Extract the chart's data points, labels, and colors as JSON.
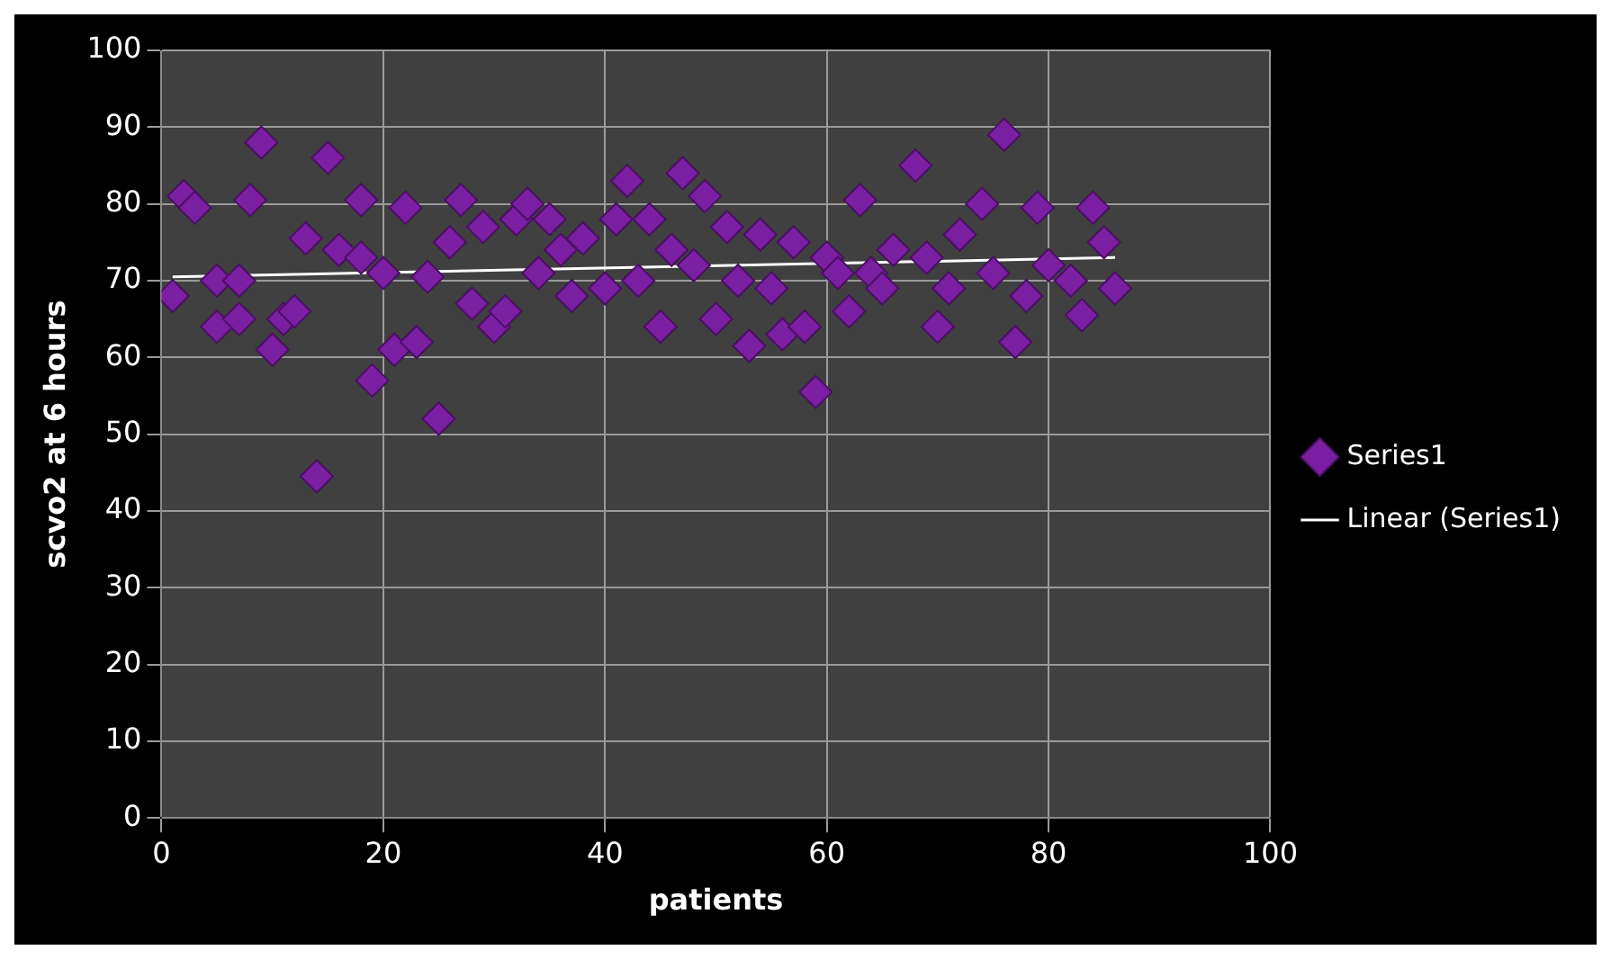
{
  "chart_data": {
    "type": "scatter",
    "xlabel": "patients",
    "ylabel": "scvo2 at 6 hours",
    "xlim": [
      0,
      100
    ],
    "xticks": [
      0,
      20,
      40,
      60,
      80,
      100
    ],
    "ylim": [
      0,
      100
    ],
    "yticks": [
      0,
      10,
      20,
      30,
      40,
      50,
      60,
      70,
      80,
      90,
      100
    ],
    "grid": true,
    "legend": "right",
    "marker": "diamond",
    "series": [
      {
        "name": "Series1",
        "color": "#7b1fa2",
        "x": [
          1,
          2,
          3,
          5,
          5,
          7,
          7,
          8,
          9,
          10,
          11,
          12,
          13,
          14,
          15,
          16,
          18,
          18,
          19,
          20,
          21,
          22,
          23,
          24,
          25,
          26,
          27,
          28,
          29,
          30,
          31,
          32,
          33,
          34,
          35,
          36,
          37,
          38,
          40,
          41,
          42,
          43,
          44,
          45,
          46,
          47,
          48,
          49,
          50,
          51,
          52,
          53,
          54,
          55,
          56,
          57,
          58,
          59,
          60,
          61,
          62,
          63,
          64,
          65,
          66,
          68,
          69,
          70,
          71,
          72,
          74,
          75,
          76,
          77,
          78,
          79,
          80,
          82,
          83,
          84,
          85,
          86
        ],
        "values": [
          68,
          81,
          79.5,
          64,
          70,
          70,
          65,
          80.5,
          88,
          61,
          65,
          66,
          75.5,
          44.5,
          86,
          74,
          73,
          80.5,
          57,
          71,
          61,
          79.5,
          62,
          70.5,
          52,
          75,
          80.5,
          67,
          77,
          64,
          66,
          78,
          80,
          71,
          78,
          74,
          68,
          75.5,
          69,
          78,
          83,
          70,
          78,
          64,
          74,
          84,
          72,
          81,
          65,
          77,
          70,
          61.5,
          76,
          69,
          63,
          75,
          64,
          55.5,
          73,
          71,
          66,
          80.5,
          71,
          69,
          74,
          85,
          73,
          64,
          69,
          76,
          80,
          71,
          89,
          62,
          68,
          79.5,
          72,
          70,
          65.5,
          79.5,
          75,
          69
        ]
      },
      {
        "name": "Linear (Series1)",
        "type": "line",
        "color": "#ffffff",
        "marker": "none",
        "x": [
          1,
          86
        ],
        "values": [
          70.5,
          73
        ]
      }
    ]
  }
}
